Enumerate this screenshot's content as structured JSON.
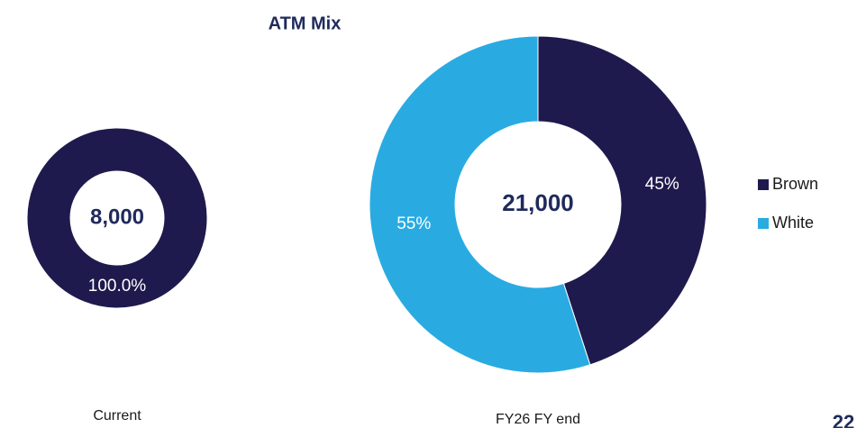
{
  "title": "ATM Mix",
  "page_number": "22",
  "chart_data": [
    {
      "type": "donut",
      "label": "Current",
      "center_label": "8,000",
      "categories": [
        "Brown"
      ],
      "values": [
        100
      ],
      "value_labels": [
        "100.0%"
      ],
      "colors": [
        "#1e1a4d"
      ]
    },
    {
      "type": "donut",
      "label": "FY26 FY end",
      "center_label": "21,000",
      "categories": [
        "Brown",
        "White"
      ],
      "values": [
        45,
        55
      ],
      "value_labels": [
        "45%",
        "55%"
      ],
      "colors": [
        "#1e1a4d",
        "#29abe2"
      ],
      "legend": "right"
    }
  ]
}
